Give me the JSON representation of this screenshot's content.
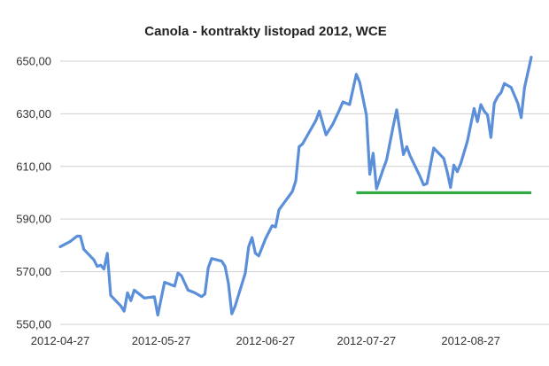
{
  "chart_data": {
    "type": "line",
    "title": "Canola - kontrakty listopad 2012, WCE",
    "xlabel": "",
    "ylabel": "",
    "x_tick_labels": [
      "2012-04-27",
      "2012-05-27",
      "2012-06-27",
      "2012-07-27",
      "2012-08-27"
    ],
    "y_tick_labels": [
      "550,00",
      "570,00",
      "590,00",
      "610,00",
      "630,00",
      "650,00"
    ],
    "y_ticks": [
      550,
      570,
      590,
      610,
      630,
      650
    ],
    "ylim": [
      550,
      652
    ],
    "xlim": [
      "2012-04-27",
      "2012-09-07"
    ],
    "grid": "horizontal",
    "series": [
      {
        "color": "#5b8fd9",
        "points": [
          [
            "2012-04-27",
            579.5
          ],
          [
            "2012-04-30",
            581.5
          ],
          [
            "2012-05-02",
            583.5
          ],
          [
            "2012-05-03",
            583.5
          ],
          [
            "2012-05-04",
            578.5
          ],
          [
            "2012-05-07",
            574.5
          ],
          [
            "2012-05-08",
            572.0
          ],
          [
            "2012-05-09",
            572.5
          ],
          [
            "2012-05-10",
            571.0
          ],
          [
            "2012-05-11",
            577.0
          ],
          [
            "2012-05-12",
            561.0
          ],
          [
            "2012-05-15",
            557.0
          ],
          [
            "2012-05-16",
            555.0
          ],
          [
            "2012-05-17",
            562.0
          ],
          [
            "2012-05-18",
            559.0
          ],
          [
            "2012-05-19",
            563.0
          ],
          [
            "2012-05-21",
            561.0
          ],
          [
            "2012-05-22",
            560.0
          ],
          [
            "2012-05-25",
            560.5
          ],
          [
            "2012-05-26",
            553.5
          ],
          [
            "2012-05-28",
            566.0
          ],
          [
            "2012-05-30",
            565.0
          ],
          [
            "2012-05-31",
            564.5
          ],
          [
            "2012-06-01",
            569.5
          ],
          [
            "2012-06-02",
            568.5
          ],
          [
            "2012-06-04",
            563.0
          ],
          [
            "2012-06-06",
            562.0
          ],
          [
            "2012-06-08",
            560.5
          ],
          [
            "2012-06-09",
            561.5
          ],
          [
            "2012-06-10",
            571.5
          ],
          [
            "2012-06-11",
            575.0
          ],
          [
            "2012-06-14",
            574.0
          ],
          [
            "2012-06-15",
            572.0
          ],
          [
            "2012-06-16",
            565.5
          ],
          [
            "2012-06-17",
            554.0
          ],
          [
            "2012-06-18",
            557.0
          ],
          [
            "2012-06-21",
            569.5
          ],
          [
            "2012-06-22",
            579.5
          ],
          [
            "2012-06-23",
            583.0
          ],
          [
            "2012-06-24",
            577.0
          ],
          [
            "2012-06-25",
            576.0
          ],
          [
            "2012-06-27",
            582.5
          ],
          [
            "2012-06-28",
            585.0
          ],
          [
            "2012-06-29",
            587.5
          ],
          [
            "2012-06-30",
            587.0
          ],
          [
            "2012-07-01",
            593.5
          ],
          [
            "2012-07-03",
            597.0
          ],
          [
            "2012-07-05",
            600.5
          ],
          [
            "2012-07-06",
            604.5
          ],
          [
            "2012-07-07",
            617.5
          ],
          [
            "2012-07-08",
            618.5
          ],
          [
            "2012-07-12",
            627.5
          ],
          [
            "2012-07-13",
            631.0
          ],
          [
            "2012-07-15",
            622.0
          ],
          [
            "2012-07-17",
            626.0
          ],
          [
            "2012-07-19",
            631.5
          ],
          [
            "2012-07-20",
            634.5
          ],
          [
            "2012-07-21",
            634.0
          ],
          [
            "2012-07-22",
            633.5
          ],
          [
            "2012-07-24",
            645.0
          ],
          [
            "2012-07-25",
            642.0
          ],
          [
            "2012-07-27",
            629.5
          ],
          [
            "2012-07-28",
            607.0
          ],
          [
            "2012-07-29",
            615.0
          ],
          [
            "2012-07-30",
            601.5
          ],
          [
            "2012-08-01",
            609.0
          ],
          [
            "2012-08-02",
            612.5
          ],
          [
            "2012-08-04",
            625.5
          ],
          [
            "2012-08-05",
            631.5
          ],
          [
            "2012-08-06",
            623.0
          ],
          [
            "2012-08-07",
            614.5
          ],
          [
            "2012-08-08",
            617.5
          ],
          [
            "2012-08-09",
            614.0
          ],
          [
            "2012-08-12",
            606.0
          ],
          [
            "2012-08-13",
            603.0
          ],
          [
            "2012-08-14",
            603.5
          ],
          [
            "2012-08-16",
            617.0
          ],
          [
            "2012-08-19",
            613.0
          ],
          [
            "2012-08-20",
            608.0
          ],
          [
            "2012-08-21",
            602.0
          ],
          [
            "2012-08-22",
            610.5
          ],
          [
            "2012-08-23",
            608.0
          ],
          [
            "2012-08-24",
            611.0
          ],
          [
            "2012-08-26",
            619.5
          ],
          [
            "2012-08-28",
            632.0
          ],
          [
            "2012-08-29",
            627.0
          ],
          [
            "2012-08-30",
            633.5
          ],
          [
            "2012-08-31",
            631.0
          ],
          [
            "2012-09-01",
            629.5
          ],
          [
            "2012-09-02",
            621.0
          ],
          [
            "2012-09-03",
            634.0
          ],
          [
            "2012-09-04",
            636.5
          ],
          [
            "2012-09-05",
            638.0
          ],
          [
            "2012-09-06",
            641.5
          ],
          [
            "2012-09-08",
            640.0
          ],
          [
            "2012-09-10",
            634.0
          ],
          [
            "2012-09-11",
            628.5
          ],
          [
            "2012-09-12",
            640.0
          ],
          [
            "2012-09-14",
            651.5
          ]
        ]
      }
    ],
    "reference_lines": [
      {
        "color": "#33aa44",
        "y": 600,
        "x_start": "2012-07-24",
        "x_end": "2012-09-14"
      }
    ]
  }
}
